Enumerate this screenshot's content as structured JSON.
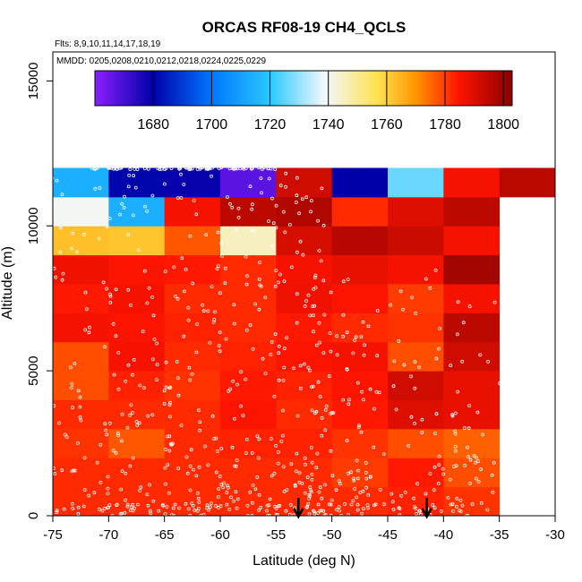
{
  "chart_data": {
    "type": "heatmap",
    "title": "ORCAS RF08-19 CH4_QCLS",
    "flights_note": "Flts: 8,9,10,11,14,17,18,19",
    "dates_note": "MMDD: 0205,0208,0210,0212,0218,0224,0225,0229",
    "xlabel": "Latitude (deg N)",
    "ylabel": "Altitude (m)",
    "xlim": [
      -75,
      -30
    ],
    "ylim": [
      0,
      16000
    ],
    "x_ticks": [
      "-75",
      "-70",
      "-65",
      "-60",
      "-55",
      "-50",
      "-45",
      "-40",
      "-35",
      "-30"
    ],
    "y_ticks": [
      "0",
      "5000",
      "10000",
      "15000"
    ],
    "colorbar": {
      "range": [
        1660,
        1803
      ],
      "ticks": [
        "1680",
        "1700",
        "1720",
        "1740",
        "1760",
        "1780",
        "1800"
      ]
    },
    "x_edges": [
      -75,
      -70,
      -65,
      -60,
      -55,
      -50,
      -45,
      -40,
      -35,
      -30
    ],
    "y_edges": [
      0,
      1000,
      2000,
      3000,
      4000,
      5000,
      6000,
      7000,
      8000,
      9000,
      10000,
      11000,
      12000
    ],
    "values": [
      [
        1782,
        1782,
        1782,
        1782,
        1782,
        1782,
        1783,
        1781,
        null
      ],
      [
        1782,
        1782,
        1782,
        1782,
        1782,
        1780,
        1784,
        1778,
        null
      ],
      [
        1781,
        1777,
        1782,
        1783,
        1783,
        1781,
        1778,
        1776,
        null
      ],
      [
        1782,
        1782,
        1782,
        1785,
        1782,
        1784,
        1790,
        1788,
        null
      ],
      [
        1778,
        1783,
        1781,
        1784,
        1783,
        1785,
        1792,
        1788,
        null
      ],
      [
        1778,
        1786,
        1782,
        1783,
        1785,
        1786,
        1778,
        1792,
        null
      ],
      [
        1786,
        1785,
        1783,
        1782,
        1784,
        1782,
        1781,
        1795,
        null
      ],
      [
        1784,
        1786,
        1782,
        1782,
        1787,
        1785,
        1780,
        1786,
        null
      ],
      [
        1787,
        1785,
        1784,
        1782,
        1786,
        1788,
        1786,
        1799,
        null
      ],
      [
        1763,
        1762,
        1777,
        1745,
        1791,
        1796,
        1793,
        1786,
        null
      ],
      [
        1740,
        1714,
        1786,
        1795,
        1797,
        1782,
        1790,
        1795,
        null
      ],
      [
        1714,
        1681,
        1679,
        1667,
        1792,
        1680,
        1726,
        1786,
        1795
      ]
    ],
    "arrow_markers_x": [
      -53,
      -41.5
    ],
    "obs_points_note": "white open circles mark individual sample locations"
  }
}
